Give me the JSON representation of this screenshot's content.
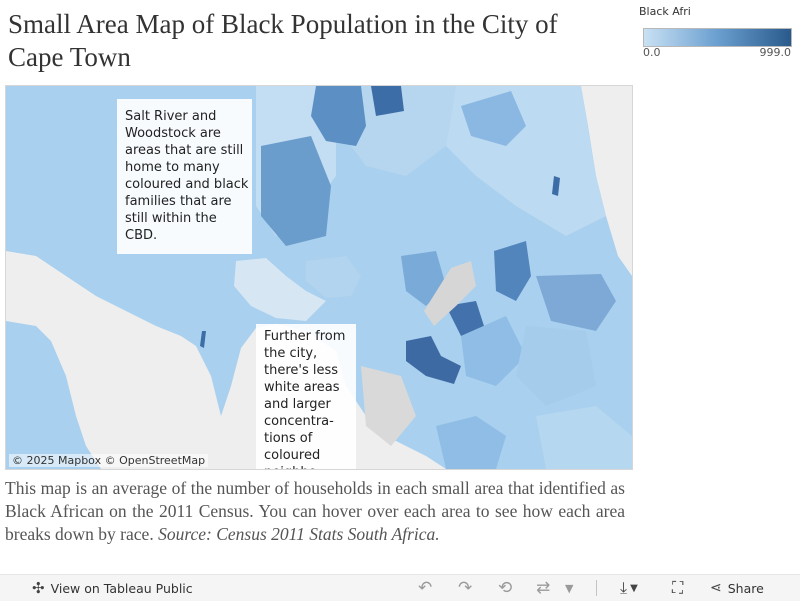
{
  "title": "Small Area Map of Black Population in the City of Cape Town",
  "legend": {
    "title": "Black Afri",
    "min_label": "0.0",
    "max_label": "999.0",
    "color_low": "#c9e1f3",
    "color_high": "#2a5a8c"
  },
  "map": {
    "annotations": [
      "Salt River and Woodstock are areas that are still home to many coloured and black families that are still within the CBD.",
      "Further from the city, there's less white areas and larger concentra-tions of coloured neighbo"
    ],
    "attribution": "© 2025 Mapbox  © OpenStreetMap"
  },
  "caption": {
    "text": "This map is an average of the number of households in each small area that identified as Black African on the 2011 Census. You can hover over each area to see how each area breaks down by race.",
    "source": "Source: Census 2011 Stats South Africa."
  },
  "toolbar": {
    "view_label": "View on Tableau Public",
    "share_label": "Share",
    "icons": [
      "tableau-logo-icon",
      "undo-icon",
      "redo-icon",
      "revert-icon",
      "refresh-icon",
      "dropdown-icon",
      "download-icon",
      "fullscreen-icon",
      "share-icon"
    ]
  }
}
